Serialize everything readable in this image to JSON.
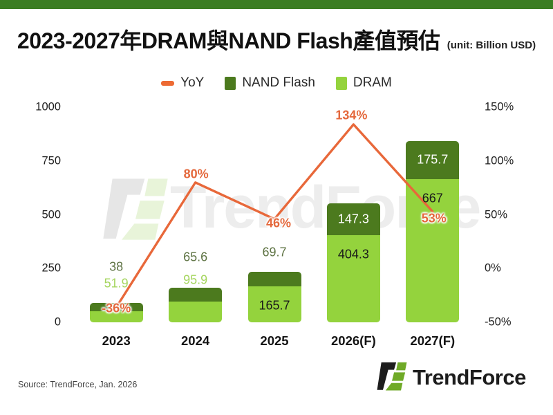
{
  "banner": {
    "color": "#3b7d22"
  },
  "title": {
    "text": "2023-2027年DRAM與NAND Flash產值預估",
    "unit": "(unit: Billion USD)"
  },
  "legend": [
    {
      "label": "YoY",
      "color": "#ed6a33",
      "marker": "line"
    },
    {
      "label": "NAND Flash",
      "color": "#4c7a1e",
      "marker": "square"
    },
    {
      "label": "DRAM",
      "color": "#94d33d",
      "marker": "square"
    }
  ],
  "chart_data": {
    "type": "bar",
    "subtype": "stacked-bar-with-line",
    "categories": [
      "2023",
      "2024",
      "2025",
      "2026(F)",
      "2027(F)"
    ],
    "series": [
      {
        "name": "DRAM",
        "type": "bar",
        "stack": true,
        "color": "#94d33d",
        "values": [
          51.9,
          95.9,
          165.7,
          404.3,
          667
        ],
        "value_labels": [
          "51.9",
          "95.9",
          "165.7",
          "404.3",
          "667"
        ]
      },
      {
        "name": "NAND Flash",
        "type": "bar",
        "stack": true,
        "color": "#4c7a1e",
        "values": [
          38,
          65.6,
          69.7,
          147.3,
          175.7
        ],
        "value_labels": [
          "38",
          "65.6",
          "69.7",
          "147.3",
          "175.7"
        ]
      },
      {
        "name": "YoY",
        "type": "line",
        "axis": "right",
        "color": "#e8683a",
        "values": [
          -36,
          80,
          46,
          134,
          53
        ],
        "value_labels": [
          "-36%",
          "80%",
          "46%",
          "134%",
          "53%"
        ]
      }
    ],
    "left_axis": {
      "range": [
        0,
        1000
      ],
      "ticks": [
        0,
        250,
        500,
        750,
        1000
      ],
      "labels": [
        "0",
        "250",
        "500",
        "750",
        "1000"
      ]
    },
    "right_axis": {
      "range": [
        -50,
        150
      ],
      "ticks": [
        -50,
        0,
        50,
        100,
        150
      ],
      "labels": [
        "-50%",
        "0%",
        "50%",
        "100%",
        "150%"
      ]
    },
    "grid": false,
    "legend_position": "top",
    "label_colors": {
      "dram_above": "#a5d55e",
      "nand_above": "#5f7444",
      "dram_inside": "#1a1a1a",
      "nand_inside": "#ffffff",
      "yoy": "#e4683c"
    }
  },
  "watermark": {
    "text": "TrendForce"
  },
  "footer": {
    "source": "Source: TrendForce, Jan. 2026",
    "brand": "TrendForce"
  }
}
